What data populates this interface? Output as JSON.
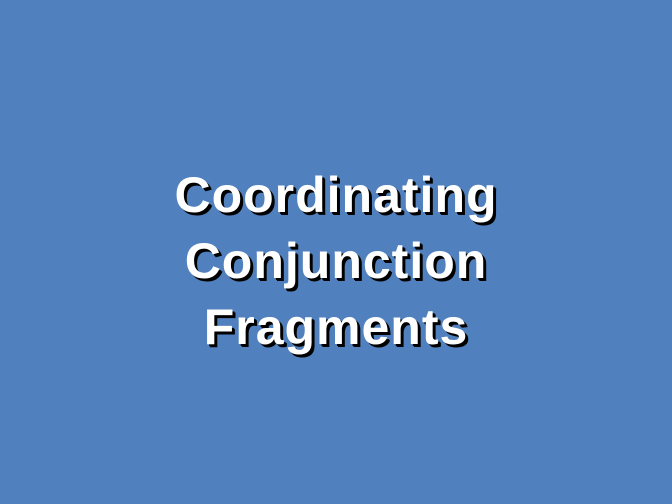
{
  "slide": {
    "title_lines": [
      "Coordinating",
      "Conjunction",
      "Fragments"
    ],
    "background_color": "#5080be",
    "text_color": "#ffffff",
    "shadow_color": "#000000"
  }
}
